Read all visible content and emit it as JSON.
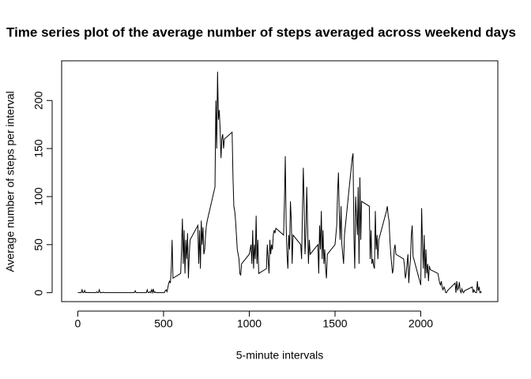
{
  "chart_data": {
    "type": "line",
    "title": "Time series plot of the average number of steps averaged across weekend days",
    "x_label": "5-minute intervals",
    "y_label": "Average number of steps per interval",
    "color": "#000000",
    "x": [
      0,
      5,
      10,
      15,
      20,
      25,
      30,
      35,
      40,
      45,
      50,
      55,
      100,
      105,
      110,
      115,
      120,
      125,
      130,
      135,
      140,
      145,
      150,
      155,
      200,
      205,
      210,
      215,
      220,
      225,
      230,
      235,
      240,
      245,
      250,
      255,
      300,
      305,
      310,
      315,
      320,
      325,
      330,
      335,
      340,
      345,
      350,
      355,
      400,
      405,
      410,
      415,
      420,
      425,
      430,
      435,
      440,
      445,
      450,
      455,
      500,
      505,
      510,
      515,
      520,
      525,
      530,
      535,
      540,
      545,
      550,
      555,
      600,
      605,
      610,
      615,
      620,
      625,
      630,
      635,
      640,
      645,
      650,
      655,
      700,
      705,
      710,
      715,
      720,
      725,
      730,
      735,
      740,
      745,
      750,
      755,
      800,
      805,
      810,
      815,
      820,
      825,
      830,
      835,
      840,
      845,
      850,
      855,
      900,
      905,
      910,
      915,
      920,
      925,
      930,
      935,
      940,
      945,
      950,
      955,
      1000,
      1005,
      1010,
      1015,
      1020,
      1025,
      1030,
      1035,
      1040,
      1045,
      1050,
      1055,
      1100,
      1105,
      1110,
      1115,
      1120,
      1125,
      1130,
      1135,
      1140,
      1145,
      1150,
      1155,
      1200,
      1205,
      1210,
      1215,
      1220,
      1225,
      1230,
      1235,
      1240,
      1245,
      1250,
      1255,
      1300,
      1305,
      1310,
      1315,
      1320,
      1325,
      1330,
      1335,
      1340,
      1345,
      1350,
      1355,
      1400,
      1405,
      1410,
      1415,
      1420,
      1425,
      1430,
      1435,
      1440,
      1445,
      1450,
      1455,
      1500,
      1505,
      1510,
      1515,
      1520,
      1525,
      1530,
      1535,
      1540,
      1545,
      1550,
      1555,
      1600,
      1605,
      1610,
      1615,
      1620,
      1625,
      1630,
      1635,
      1640,
      1645,
      1650,
      1655,
      1700,
      1705,
      1710,
      1715,
      1720,
      1725,
      1730,
      1735,
      1740,
      1745,
      1750,
      1755,
      1800,
      1805,
      1810,
      1815,
      1820,
      1825,
      1830,
      1835,
      1840,
      1845,
      1850,
      1855,
      1900,
      1905,
      1910,
      1915,
      1920,
      1925,
      1930,
      1935,
      1940,
      1945,
      1950,
      1955,
      2000,
      2005,
      2010,
      2015,
      2020,
      2025,
      2030,
      2035,
      2040,
      2045,
      2050,
      2055,
      2100,
      2105,
      2110,
      2115,
      2120,
      2125,
      2130,
      2135,
      2140,
      2145,
      2150,
      2155,
      2200,
      2205,
      2210,
      2215,
      2220,
      2225,
      2230,
      2235,
      2240,
      2245,
      2250,
      2255,
      2300,
      2305,
      2310,
      2315,
      2320,
      2325,
      2330,
      2335,
      2340,
      2345,
      2350,
      2355
    ],
    "values": [
      0.2,
      0,
      0,
      0,
      0,
      3,
      0,
      0.1,
      2.4,
      0,
      0.3,
      0.1,
      0,
      0,
      1,
      0,
      0,
      3,
      0,
      0,
      0,
      0,
      0.5,
      0,
      0,
      0,
      0,
      0,
      0,
      0,
      0,
      0,
      0,
      0,
      0,
      0,
      0,
      0,
      0,
      0,
      0,
      0,
      0,
      2,
      0,
      0,
      0,
      0,
      0,
      3,
      0,
      0,
      1,
      0,
      3,
      0,
      4,
      0,
      1,
      0,
      0,
      0,
      2,
      3,
      1,
      5,
      10,
      12,
      10,
      25,
      55,
      15,
      20,
      45,
      77,
      30,
      65,
      20,
      55,
      35,
      62,
      15,
      40,
      55,
      70,
      30,
      65,
      25,
      75,
      50,
      68,
      40,
      45,
      60,
      70,
      75,
      110,
      200,
      150,
      230,
      180,
      190,
      170,
      140,
      160,
      165,
      150,
      160,
      167,
      120,
      90,
      85,
      75,
      60,
      45,
      40,
      35,
      20,
      18,
      30,
      40,
      45,
      50,
      30,
      65,
      25,
      50,
      35,
      80,
      30,
      55,
      20,
      25,
      50,
      35,
      20,
      55,
      40,
      50,
      45,
      60,
      65,
      62,
      67,
      60,
      95,
      142,
      70,
      40,
      25,
      60,
      45,
      95,
      75,
      30,
      60,
      50,
      35,
      85,
      130,
      90,
      40,
      60,
      110,
      70,
      30,
      55,
      40,
      50,
      20,
      70,
      45,
      85,
      35,
      65,
      30,
      45,
      25,
      15,
      40,
      50,
      60,
      70,
      105,
      125,
      80,
      55,
      90,
      50,
      40,
      30,
      60,
      140,
      145,
      60,
      25,
      100,
      80,
      60,
      110,
      30,
      120,
      55,
      95,
      90,
      35,
      65,
      30,
      35,
      28,
      25,
      85,
      45,
      60,
      35,
      55,
      85,
      90,
      80,
      75,
      55,
      40,
      30,
      20,
      25,
      45,
      50,
      40,
      35,
      28,
      15,
      20,
      30,
      40,
      10,
      25,
      35,
      60,
      70,
      38,
      8,
      88,
      50,
      25,
      60,
      15,
      45,
      20,
      30,
      12,
      28,
      24,
      20,
      15,
      10,
      8,
      12,
      5,
      3,
      6,
      4,
      0,
      0,
      2,
      10,
      0,
      12,
      3,
      5,
      11,
      2,
      0,
      4,
      1,
      0,
      2,
      6,
      0,
      3,
      1,
      0,
      0,
      12,
      2,
      6,
      0,
      1,
      0
    ],
    "xlim": [
      -94.2,
      2449.2
    ],
    "ylim": [
      -9.3,
      241.3
    ],
    "xticks": [
      0,
      500,
      1000,
      1500,
      2000
    ],
    "yticks": [
      0,
      50,
      100,
      150,
      200
    ]
  }
}
